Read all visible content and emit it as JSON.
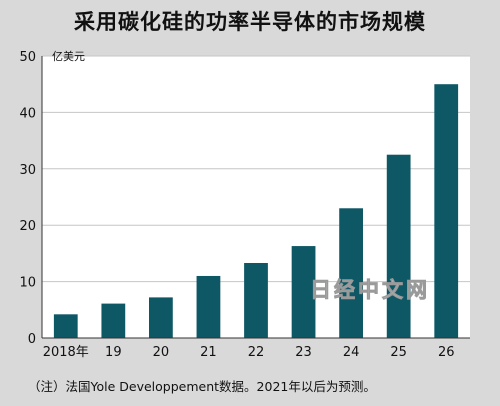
{
  "chart_data": {
    "type": "bar",
    "title": "采用碳化硅的功率半导体的市场规模",
    "unit_label": "亿美元",
    "categories": [
      "2018年",
      "19",
      "20",
      "21",
      "22",
      "23",
      "24",
      "25",
      "26"
    ],
    "values": [
      4.2,
      6.1,
      7.2,
      11.0,
      13.3,
      16.3,
      23.0,
      32.5,
      45.0
    ],
    "ylim": [
      0,
      50
    ],
    "yticks": [
      0,
      10,
      20,
      30,
      40,
      50
    ],
    "grid": true,
    "legend": "none",
    "bar_color": "#0e5866",
    "footnote": "（注）法国Yole Developpement数据。2021年以后为预测。"
  },
  "watermark": "日经中文网",
  "colors": {
    "background": "#d9d9d9",
    "plot_background": "#ffffff",
    "grid": "#c6c6c6",
    "axis": "#333333"
  }
}
